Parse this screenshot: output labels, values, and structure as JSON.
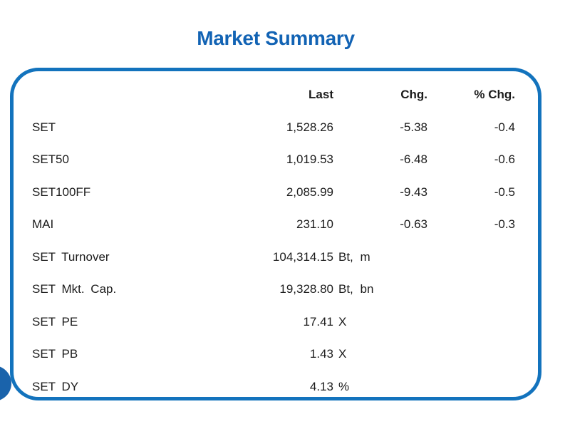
{
  "title": "Market Summary",
  "colors": {
    "title_blue": "#1263b4",
    "border_blue": "#1373bd",
    "circle_blue": "#1a63ab",
    "text": "#1c1c1c"
  },
  "table": {
    "headers": {
      "last": "Last",
      "chg": "Chg.",
      "pct_chg": "% Chg."
    },
    "rows": [
      {
        "label": "SET",
        "last": "1,528.26",
        "unit": "",
        "chg": "-5.38",
        "pct_chg": "-0.4"
      },
      {
        "label": "SET50",
        "last": "1,019.53",
        "unit": "",
        "chg": "-6.48",
        "pct_chg": "-0.6"
      },
      {
        "label": "SET100FF",
        "last": "2,085.99",
        "unit": "",
        "chg": "-9.43",
        "pct_chg": "-0.5"
      },
      {
        "label": "MAI",
        "last": "231.10",
        "unit": "",
        "chg": "-0.63",
        "pct_chg": "-0.3"
      },
      {
        "label": "SET Turnover",
        "last": "104,314.15",
        "unit": "Bt, m",
        "chg": "",
        "pct_chg": ""
      },
      {
        "label": "SET Mkt. Cap.",
        "last": "19,328.80",
        "unit": "Bt, bn",
        "chg": "",
        "pct_chg": ""
      },
      {
        "label": "SET PE",
        "last": "17.41",
        "unit": "X",
        "chg": "",
        "pct_chg": ""
      },
      {
        "label": "SET PB",
        "last": "1.43",
        "unit": "X",
        "chg": "",
        "pct_chg": ""
      },
      {
        "label": "SET DY",
        "last": "4.13",
        "unit": "%",
        "chg": "",
        "pct_chg": ""
      }
    ]
  }
}
